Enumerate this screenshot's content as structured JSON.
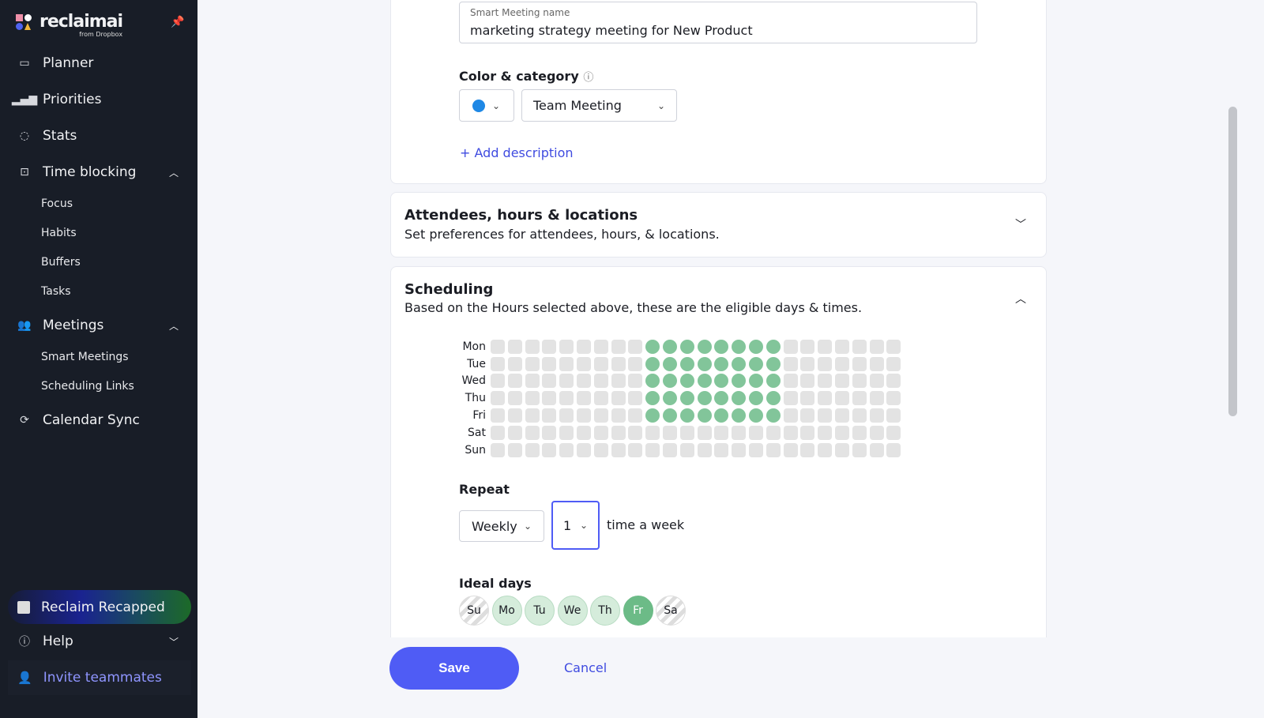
{
  "sidebar": {
    "logo": "reclaimai",
    "logo_sub": "from Dropbox",
    "items": [
      {
        "label": "Planner"
      },
      {
        "label": "Priorities"
      },
      {
        "label": "Stats"
      },
      {
        "label": "Time blocking"
      },
      {
        "label": "Meetings"
      },
      {
        "label": "Calendar Sync"
      }
    ],
    "time_blocking_sub": [
      "Focus",
      "Habits",
      "Buffers",
      "Tasks"
    ],
    "meetings_sub": [
      "Smart Meetings",
      "Scheduling Links"
    ],
    "recap": "Reclaim Recapped",
    "help": "Help",
    "invite": "Invite teammates"
  },
  "form": {
    "name_label": "Smart Meeting name",
    "name_value": "marketing strategy meeting for New Product",
    "color_label": "Color & category",
    "color": "#1e88e5",
    "category": "Team Meeting",
    "add_description": "+ Add description"
  },
  "attendees": {
    "title": "Attendees, hours & locations",
    "desc": "Set preferences for attendees, hours, & locations."
  },
  "scheduling": {
    "title": "Scheduling",
    "desc": "Based on the Hours selected above, these are the eligible days & times.",
    "slots_per_day": 24,
    "rows": [
      {
        "day": "Mon",
        "active": [
          9,
          10,
          11,
          12,
          13,
          14,
          15,
          16
        ]
      },
      {
        "day": "Tue",
        "active": [
          9,
          10,
          11,
          12,
          13,
          14,
          15,
          16
        ]
      },
      {
        "day": "Wed",
        "active": [
          9,
          10,
          11,
          12,
          13,
          14,
          15,
          16
        ]
      },
      {
        "day": "Thu",
        "active": [
          9,
          10,
          11,
          12,
          13,
          14,
          15,
          16
        ]
      },
      {
        "day": "Fri",
        "active": [
          9,
          10,
          11,
          12,
          13,
          14,
          15,
          16
        ]
      },
      {
        "day": "Sat",
        "active": []
      },
      {
        "day": "Sun",
        "active": []
      }
    ],
    "repeat_label": "Repeat",
    "repeat": "Weekly",
    "times": "1",
    "times_suffix": "time a week",
    "ideal_label": "Ideal days",
    "ideal_days": [
      {
        "d": "Su",
        "state": "off"
      },
      {
        "d": "Mo",
        "state": "available"
      },
      {
        "d": "Tu",
        "state": "available"
      },
      {
        "d": "We",
        "state": "available"
      },
      {
        "d": "Th",
        "state": "available"
      },
      {
        "d": "Fr",
        "state": "selected"
      },
      {
        "d": "Sa",
        "state": "off"
      }
    ]
  },
  "footer": {
    "save": "Save",
    "cancel": "Cancel"
  }
}
